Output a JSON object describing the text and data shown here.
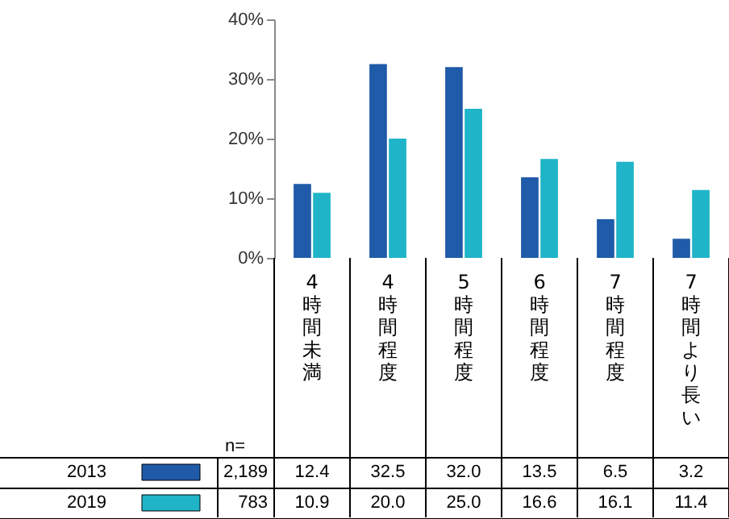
{
  "chart_data": {
    "type": "bar",
    "categories": [
      "4時間未満",
      "4時間程度",
      "5時間程度",
      "6時間程度",
      "7時間程度",
      "7時間より長い"
    ],
    "series": [
      {
        "name": "2013",
        "color": "#1f5ba8",
        "values": [
          12.4,
          32.5,
          32.0,
          13.5,
          6.5,
          3.2
        ],
        "value_labels": [
          "12.4",
          "32.5",
          "32.0",
          "13.5",
          "6.5",
          "3.2"
        ]
      },
      {
        "name": "2019",
        "color": "#1fb4c8",
        "values": [
          10.9,
          20.0,
          25.0,
          16.6,
          16.1,
          11.4
        ],
        "value_labels": [
          "10.9",
          "20.0",
          "25.0",
          "16.6",
          "16.1",
          "11.4"
        ]
      }
    ],
    "ylim": [
      0,
      40
    ],
    "yticks": [
      {
        "value": 0,
        "label": "0%"
      },
      {
        "value": 10,
        "label": "10%"
      },
      {
        "value": 20,
        "label": "20%"
      },
      {
        "value": 30,
        "label": "30%"
      },
      {
        "value": 40,
        "label": "40%"
      }
    ],
    "annotations": [
      "n=",
      "2,189",
      "783"
    ],
    "legend": "bottom left",
    "grid": false
  }
}
